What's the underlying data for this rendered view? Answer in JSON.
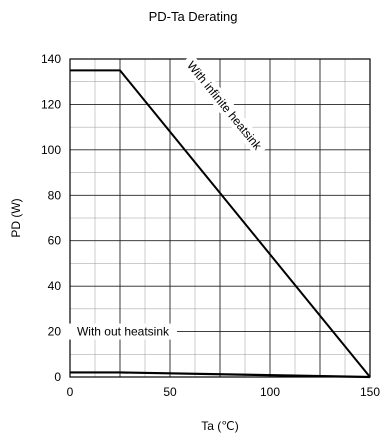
{
  "chart_data": {
    "type": "line",
    "title": "PD-Ta  Derating",
    "xlabel": "Ta  (℃)",
    "ylabel": "PD  (W)",
    "xlim": [
      0,
      150
    ],
    "ylim": [
      0,
      140
    ],
    "x_ticks": [
      0,
      50,
      100,
      150
    ],
    "y_ticks": [
      0,
      20,
      40,
      60,
      80,
      100,
      120,
      140
    ],
    "grid": true,
    "series": [
      {
        "name": "With infinite heatsink",
        "x": [
          0,
          25,
          150
        ],
        "y": [
          135,
          135,
          0
        ]
      },
      {
        "name": "With out heatsink",
        "x": [
          0,
          25,
          150
        ],
        "y": [
          2,
          2,
          0
        ]
      }
    ]
  }
}
